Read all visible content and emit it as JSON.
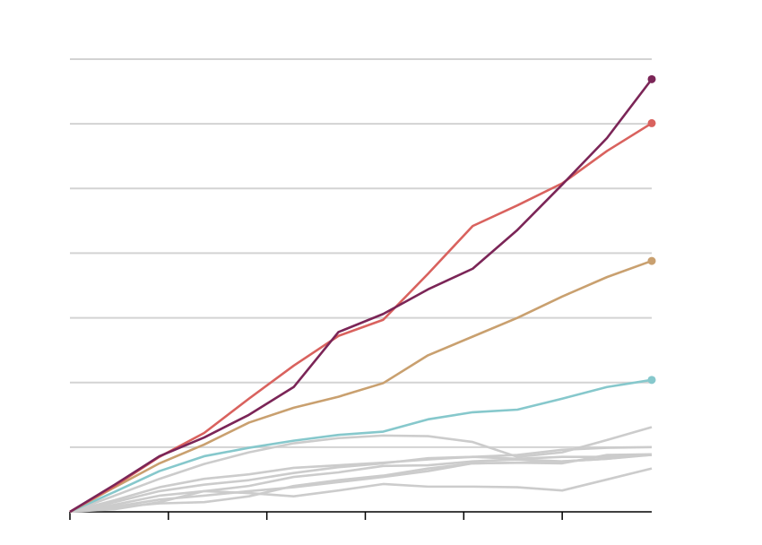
{
  "chart_data": {
    "type": "line",
    "x": [
      0,
      1,
      2,
      3,
      4,
      5,
      6,
      7,
      8,
      9,
      10,
      11,
      12,
      13
    ],
    "xlim": [
      0,
      13
    ],
    "xticks": [
      0,
      2.2,
      4.4,
      6.6,
      8.8,
      11
    ],
    "ylim": [
      0,
      7
    ],
    "yticks": [
      1,
      2,
      3,
      4,
      5,
      6,
      7
    ],
    "grid": true,
    "series": [
      {
        "color": "#cccccc",
        "values": [
          0,
          0.25,
          0.51,
          0.74,
          0.92,
          1.06,
          1.14,
          1.18,
          1.17,
          1.08,
          0.85,
          0.92,
          1.11,
          1.31
        ]
      },
      {
        "color": "#cccccc",
        "values": [
          0,
          0.18,
          0.38,
          0.51,
          0.58,
          0.68,
          0.72,
          0.76,
          0.81,
          0.85,
          0.88,
          0.96,
          0.99,
          1.0
        ]
      },
      {
        "color": "#cccccc",
        "values": [
          0,
          0.15,
          0.32,
          0.42,
          0.49,
          0.6,
          0.69,
          0.75,
          0.83,
          0.85,
          0.82,
          0.85,
          0.85,
          0.88
        ]
      },
      {
        "color": "#cccccc",
        "values": [
          0,
          0.11,
          0.25,
          0.32,
          0.4,
          0.54,
          0.61,
          0.71,
          0.72,
          0.78,
          0.81,
          0.78,
          0.82,
          0.88
        ]
      },
      {
        "color": "#cccccc",
        "values": [
          0,
          0.08,
          0.19,
          0.25,
          0.32,
          0.38,
          0.46,
          0.54,
          0.63,
          0.75,
          0.76,
          0.75,
          0.88,
          0.89
        ]
      },
      {
        "color": "#cccccc",
        "values": [
          0,
          0.04,
          0.15,
          0.32,
          0.29,
          0.24,
          0.33,
          0.43,
          0.39,
          0.39,
          0.38,
          0.33,
          0.5,
          0.67
        ]
      },
      {
        "color": "#cccccc",
        "values": [
          0,
          0.07,
          0.13,
          0.15,
          0.24,
          0.4,
          0.49,
          0.56,
          0.67,
          0.75,
          0.76,
          0.78,
          0.82,
          0.89
        ]
      },
      {
        "color": "#86c8cc",
        "end_dot": true,
        "values": [
          0,
          0.31,
          0.63,
          0.86,
          0.99,
          1.1,
          1.19,
          1.24,
          1.43,
          1.54,
          1.58,
          1.75,
          1.93,
          2.04
        ]
      },
      {
        "color": "#c9a06f",
        "end_dot": true,
        "values": [
          0,
          0.38,
          0.75,
          1.04,
          1.38,
          1.61,
          1.78,
          1.99,
          2.42,
          2.71,
          3.0,
          3.33,
          3.63,
          3.88
        ]
      },
      {
        "color": "#d9625e",
        "end_dot": true,
        "values": [
          0,
          0.4,
          0.85,
          1.22,
          1.75,
          2.26,
          2.72,
          2.97,
          3.68,
          4.42,
          4.74,
          5.08,
          5.58,
          6.01
        ]
      },
      {
        "color": "#7b2557",
        "end_dot": true,
        "values": [
          0,
          0.42,
          0.86,
          1.15,
          1.5,
          1.93,
          2.78,
          3.06,
          3.44,
          3.76,
          4.36,
          5.06,
          5.78,
          6.69
        ]
      }
    ]
  }
}
